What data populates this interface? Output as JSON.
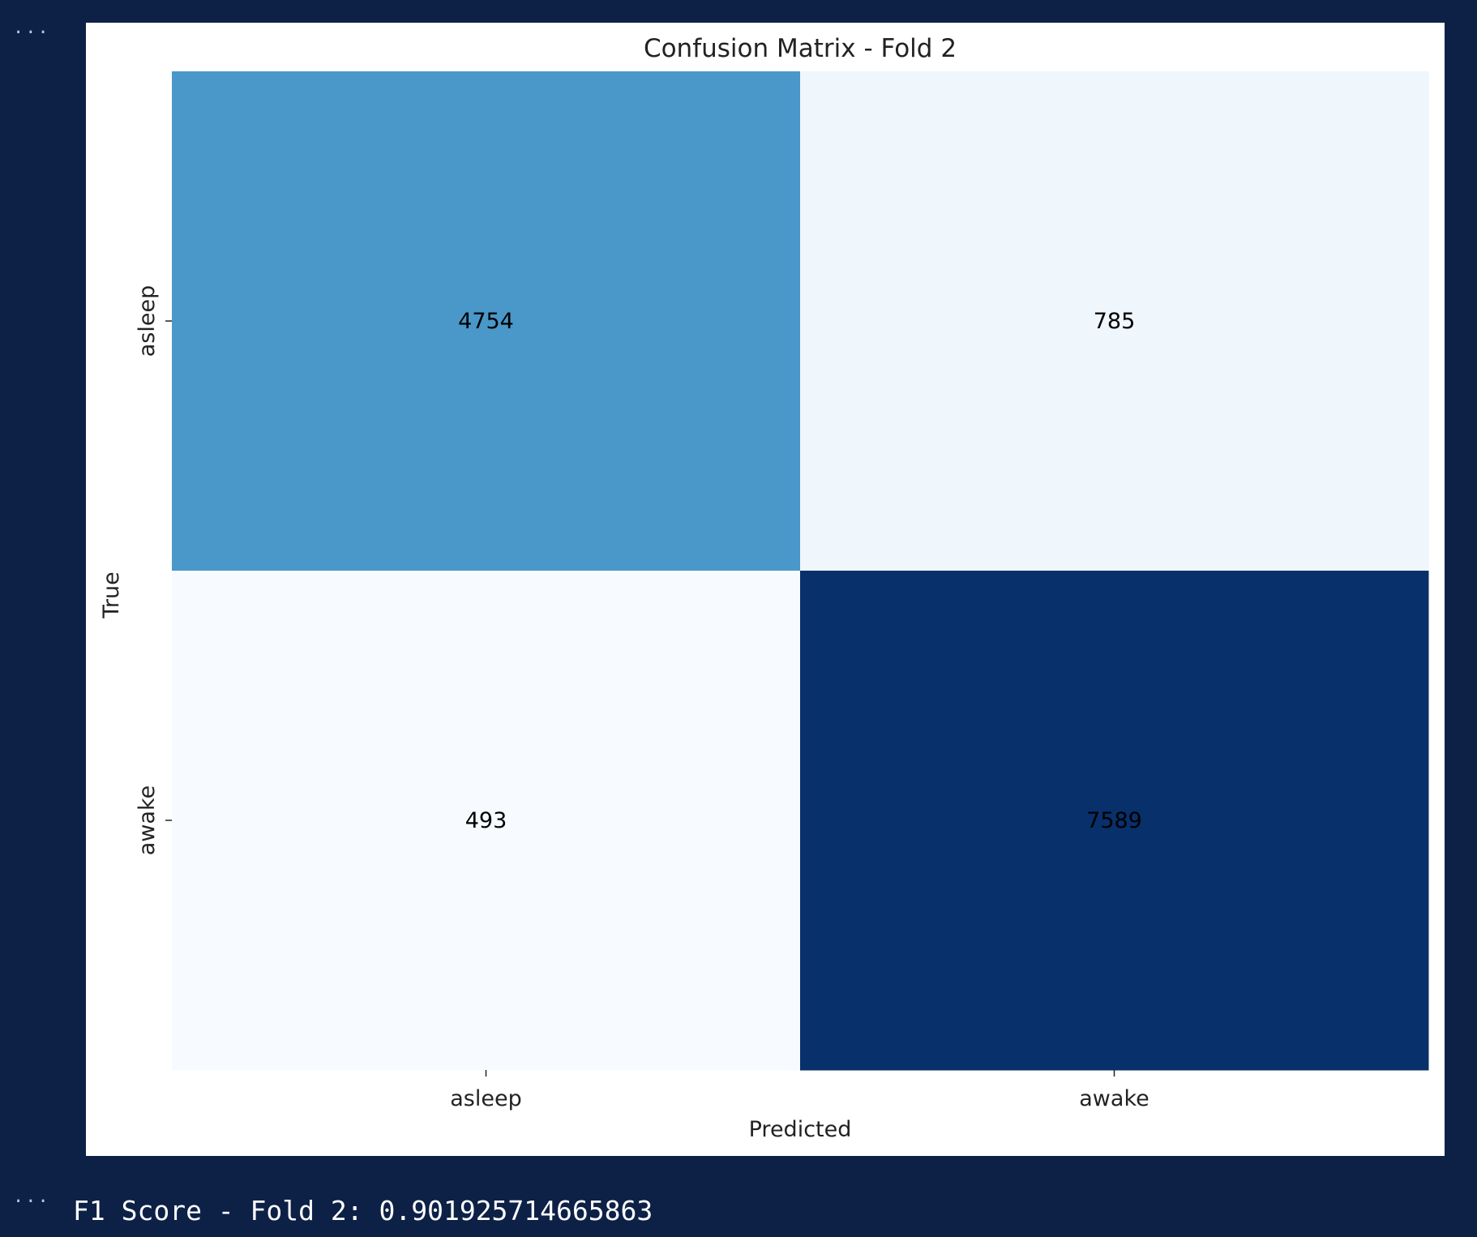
{
  "cells": {
    "figure_output": {
      "chart_data": {
        "type": "heatmap",
        "title": "Confusion Matrix - Fold 2",
        "xlabel": "Predicted",
        "ylabel": "True",
        "x_categories": [
          "asleep",
          "awake"
        ],
        "y_categories": [
          "asleep",
          "awake"
        ],
        "matrix": [
          [
            4754,
            785
          ],
          [
            493,
            7589
          ]
        ],
        "colormap": "Blues",
        "colorbar": false,
        "colors": {
          "low": "#f7fbff",
          "mid": "#6baed6",
          "high": "#08306b",
          "annot_text": "#000000"
        }
      }
    },
    "stdout": {
      "text": "F1 Score - Fold 2: 0.901925714665863"
    }
  },
  "ui": {
    "ellipsis_icon": "ellipsis-icon",
    "background": "#0d2147"
  }
}
